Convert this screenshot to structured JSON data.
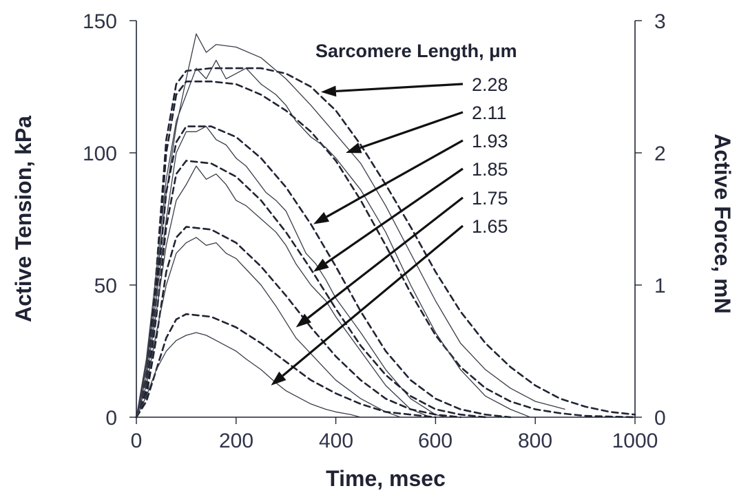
{
  "chart_data": {
    "type": "line",
    "xlabel": "Time, msec",
    "ylabel_left": "Active Tension, kPa",
    "ylabel_right": "Active Force, mN",
    "xlim": [
      0,
      1000
    ],
    "ylim_left": [
      0,
      150
    ],
    "ylim_right": [
      0,
      3
    ],
    "x_ticks": [
      "0",
      "200",
      "400",
      "600",
      "800",
      "1000"
    ],
    "y_left_ticks": [
      "0",
      "50",
      "100",
      "150"
    ],
    "y_right_ticks": [
      "0",
      "1",
      "2",
      "3"
    ],
    "legend_title": "Sarcomere Length, μm",
    "legend_values": [
      "2.28",
      "2.11",
      "1.93",
      "1.85",
      "1.75",
      "1.65"
    ],
    "series": [
      {
        "name": "2.28",
        "measured": [
          [
            0,
            0
          ],
          [
            20,
            20
          ],
          [
            40,
            50
          ],
          [
            60,
            85
          ],
          [
            80,
            110
          ],
          [
            100,
            128
          ],
          [
            120,
            145
          ],
          [
            140,
            138
          ],
          [
            160,
            141
          ],
          [
            200,
            140
          ],
          [
            250,
            136
          ],
          [
            300,
            128
          ],
          [
            350,
            118
          ],
          [
            400,
            107
          ],
          [
            450,
            96
          ],
          [
            500,
            80
          ],
          [
            550,
            62
          ],
          [
            600,
            44
          ],
          [
            650,
            28
          ],
          [
            700,
            18
          ],
          [
            750,
            11
          ],
          [
            800,
            6
          ],
          [
            860,
            3
          ]
        ],
        "model": [
          [
            0,
            0
          ],
          [
            20,
            15
          ],
          [
            40,
            55
          ],
          [
            60,
            105
          ],
          [
            80,
            126
          ],
          [
            100,
            131
          ],
          [
            150,
            132
          ],
          [
            200,
            132
          ],
          [
            250,
            132
          ],
          [
            300,
            130
          ],
          [
            350,
            125
          ],
          [
            400,
            116
          ],
          [
            450,
            103
          ],
          [
            500,
            88
          ],
          [
            550,
            72
          ],
          [
            600,
            55
          ],
          [
            650,
            40
          ],
          [
            700,
            28
          ],
          [
            750,
            19
          ],
          [
            800,
            12
          ],
          [
            850,
            7
          ],
          [
            900,
            4
          ],
          [
            950,
            2
          ],
          [
            1000,
            1
          ]
        ]
      },
      {
        "name": "2.11",
        "measured": [
          [
            0,
            0
          ],
          [
            20,
            22
          ],
          [
            40,
            55
          ],
          [
            60,
            90
          ],
          [
            80,
            112
          ],
          [
            100,
            122
          ],
          [
            120,
            132
          ],
          [
            140,
            128
          ],
          [
            160,
            135
          ],
          [
            180,
            128
          ],
          [
            200,
            130
          ],
          [
            220,
            132
          ],
          [
            250,
            126
          ],
          [
            280,
            122
          ],
          [
            300,
            118
          ],
          [
            320,
            112
          ],
          [
            350,
            106
          ],
          [
            380,
            102
          ],
          [
            400,
            98
          ],
          [
            450,
            86
          ],
          [
            500,
            70
          ],
          [
            550,
            50
          ],
          [
            600,
            32
          ],
          [
            650,
            18
          ],
          [
            700,
            8
          ],
          [
            750,
            3
          ],
          [
            790,
            0
          ]
        ],
        "model": [
          [
            0,
            0
          ],
          [
            20,
            15
          ],
          [
            40,
            52
          ],
          [
            60,
            100
          ],
          [
            80,
            122
          ],
          [
            100,
            127
          ],
          [
            150,
            127
          ],
          [
            200,
            126
          ],
          [
            250,
            122
          ],
          [
            300,
            116
          ],
          [
            350,
            108
          ],
          [
            400,
            97
          ],
          [
            450,
            82
          ],
          [
            500,
            65
          ],
          [
            550,
            47
          ],
          [
            600,
            31
          ],
          [
            650,
            19
          ],
          [
            700,
            11
          ],
          [
            750,
            6
          ],
          [
            800,
            3
          ],
          [
            850,
            1.5
          ],
          [
            900,
            0.5
          ],
          [
            1000,
            0
          ]
        ]
      },
      {
        "name": "1.93",
        "measured": [
          [
            0,
            0
          ],
          [
            20,
            18
          ],
          [
            40,
            45
          ],
          [
            60,
            75
          ],
          [
            80,
            100
          ],
          [
            100,
            108
          ],
          [
            120,
            108
          ],
          [
            140,
            110
          ],
          [
            160,
            105
          ],
          [
            180,
            103
          ],
          [
            200,
            98
          ],
          [
            220,
            95
          ],
          [
            240,
            90
          ],
          [
            260,
            85
          ],
          [
            280,
            82
          ],
          [
            300,
            78
          ],
          [
            320,
            70
          ],
          [
            340,
            62
          ],
          [
            360,
            58
          ],
          [
            380,
            52
          ],
          [
            400,
            45
          ],
          [
            450,
            32
          ],
          [
            500,
            18
          ],
          [
            550,
            7
          ],
          [
            600,
            1
          ],
          [
            620,
            0
          ]
        ],
        "model": [
          [
            0,
            0
          ],
          [
            20,
            12
          ],
          [
            40,
            45
          ],
          [
            60,
            85
          ],
          [
            80,
            104
          ],
          [
            100,
            110
          ],
          [
            150,
            110
          ],
          [
            200,
            106
          ],
          [
            250,
            98
          ],
          [
            300,
            87
          ],
          [
            350,
            73
          ],
          [
            400,
            57
          ],
          [
            450,
            40
          ],
          [
            500,
            25
          ],
          [
            550,
            14
          ],
          [
            600,
            7
          ],
          [
            650,
            3
          ],
          [
            700,
            1
          ],
          [
            750,
            0
          ]
        ]
      },
      {
        "name": "1.85",
        "measured": [
          [
            0,
            0
          ],
          [
            20,
            15
          ],
          [
            40,
            40
          ],
          [
            60,
            65
          ],
          [
            80,
            82
          ],
          [
            100,
            88
          ],
          [
            120,
            95
          ],
          [
            140,
            90
          ],
          [
            160,
            92
          ],
          [
            180,
            88
          ],
          [
            200,
            82
          ],
          [
            220,
            80
          ],
          [
            250,
            75
          ],
          [
            280,
            70
          ],
          [
            300,
            65
          ],
          [
            320,
            58
          ],
          [
            350,
            50
          ],
          [
            380,
            44
          ],
          [
            400,
            38
          ],
          [
            450,
            25
          ],
          [
            500,
            12
          ],
          [
            550,
            3
          ],
          [
            590,
            0
          ]
        ],
        "model": [
          [
            0,
            0
          ],
          [
            20,
            10
          ],
          [
            40,
            38
          ],
          [
            60,
            72
          ],
          [
            80,
            92
          ],
          [
            100,
            97
          ],
          [
            150,
            96
          ],
          [
            200,
            91
          ],
          [
            250,
            82
          ],
          [
            300,
            70
          ],
          [
            350,
            56
          ],
          [
            400,
            41
          ],
          [
            450,
            27
          ],
          [
            500,
            16
          ],
          [
            550,
            8
          ],
          [
            600,
            3
          ],
          [
            650,
            1
          ],
          [
            700,
            0
          ]
        ]
      },
      {
        "name": "1.75",
        "measured": [
          [
            0,
            0
          ],
          [
            20,
            12
          ],
          [
            40,
            32
          ],
          [
            60,
            50
          ],
          [
            80,
            62
          ],
          [
            100,
            66
          ],
          [
            120,
            68
          ],
          [
            140,
            65
          ],
          [
            160,
            66
          ],
          [
            180,
            62
          ],
          [
            200,
            60
          ],
          [
            220,
            56
          ],
          [
            250,
            50
          ],
          [
            280,
            42
          ],
          [
            300,
            36
          ],
          [
            320,
            30
          ],
          [
            350,
            24
          ],
          [
            380,
            18
          ],
          [
            400,
            14
          ],
          [
            450,
            7
          ],
          [
            500,
            2
          ],
          [
            530,
            0
          ]
        ],
        "model": [
          [
            0,
            0
          ],
          [
            20,
            8
          ],
          [
            40,
            30
          ],
          [
            60,
            55
          ],
          [
            80,
            68
          ],
          [
            100,
            72
          ],
          [
            150,
            71
          ],
          [
            200,
            66
          ],
          [
            250,
            57
          ],
          [
            300,
            46
          ],
          [
            350,
            34
          ],
          [
            400,
            23
          ],
          [
            450,
            14
          ],
          [
            500,
            7
          ],
          [
            550,
            3
          ],
          [
            600,
            1
          ],
          [
            650,
            0
          ]
        ]
      },
      {
        "name": "1.65",
        "measured": [
          [
            0,
            0
          ],
          [
            20,
            8
          ],
          [
            40,
            18
          ],
          [
            60,
            25
          ],
          [
            80,
            29
          ],
          [
            100,
            31
          ],
          [
            120,
            32
          ],
          [
            140,
            31
          ],
          [
            160,
            29
          ],
          [
            180,
            27
          ],
          [
            200,
            25
          ],
          [
            220,
            22
          ],
          [
            250,
            18
          ],
          [
            280,
            13
          ],
          [
            300,
            10
          ],
          [
            320,
            8
          ],
          [
            350,
            5
          ],
          [
            380,
            3
          ],
          [
            400,
            2
          ],
          [
            430,
            1
          ],
          [
            450,
            0
          ]
        ],
        "model": [
          [
            0,
            0
          ],
          [
            20,
            6
          ],
          [
            40,
            18
          ],
          [
            60,
            30
          ],
          [
            80,
            37
          ],
          [
            100,
            39
          ],
          [
            150,
            38
          ],
          [
            200,
            34
          ],
          [
            250,
            28
          ],
          [
            300,
            21
          ],
          [
            350,
            14
          ],
          [
            400,
            9
          ],
          [
            450,
            5
          ],
          [
            500,
            2
          ],
          [
            550,
            1
          ],
          [
            600,
            0
          ]
        ]
      }
    ]
  }
}
